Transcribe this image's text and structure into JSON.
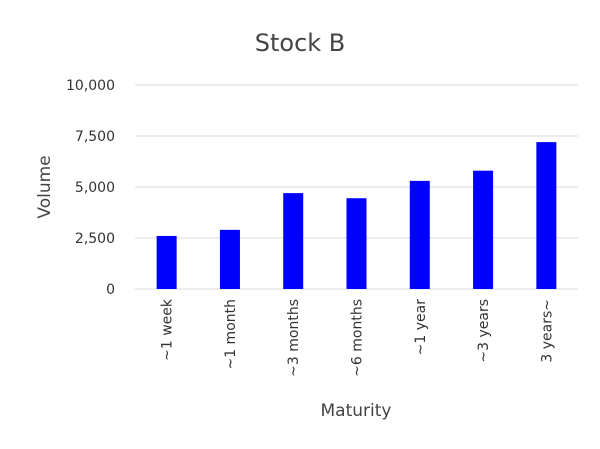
{
  "chart_data": {
    "type": "bar",
    "title": "Stock B",
    "xlabel": "Maturity",
    "ylabel": "Volume",
    "categories": [
      "~1 week",
      "~1 month",
      "~3 months",
      "~6 months",
      "~1 year",
      "~3 years",
      "3 years~"
    ],
    "values": [
      2600,
      2900,
      4700,
      4450,
      5300,
      5800,
      7200
    ],
    "ylim": [
      0,
      10000
    ],
    "yticks": [
      0,
      2500,
      5000,
      7500,
      10000
    ],
    "ytick_labels": [
      "0",
      "2,500",
      "5,000",
      "7,500",
      "10,000"
    ],
    "grid": true,
    "legend": "none",
    "bar_color": "#0000ff"
  }
}
